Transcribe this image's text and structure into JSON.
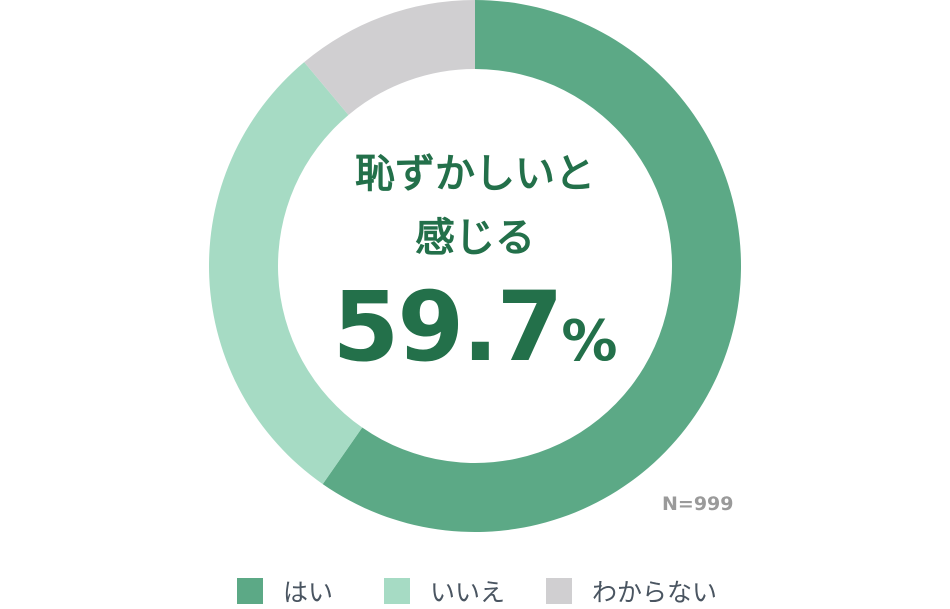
{
  "chart_data": {
    "type": "pie",
    "style": "donut",
    "categories": [
      "はい",
      "いいえ",
      "わからない"
    ],
    "values": [
      59.7,
      29.2,
      11.1
    ],
    "colors": [
      "#5ca986",
      "#a6dbc4",
      "#d0cfd1"
    ],
    "center_label_line1": "恥ずかしいと",
    "center_label_line2": "感じる",
    "center_value": "59.7",
    "center_unit": "%",
    "sample_size": "N=999",
    "legend": [
      "はい",
      "いいえ",
      "わからない"
    ],
    "legend_placement": "bottom"
  }
}
